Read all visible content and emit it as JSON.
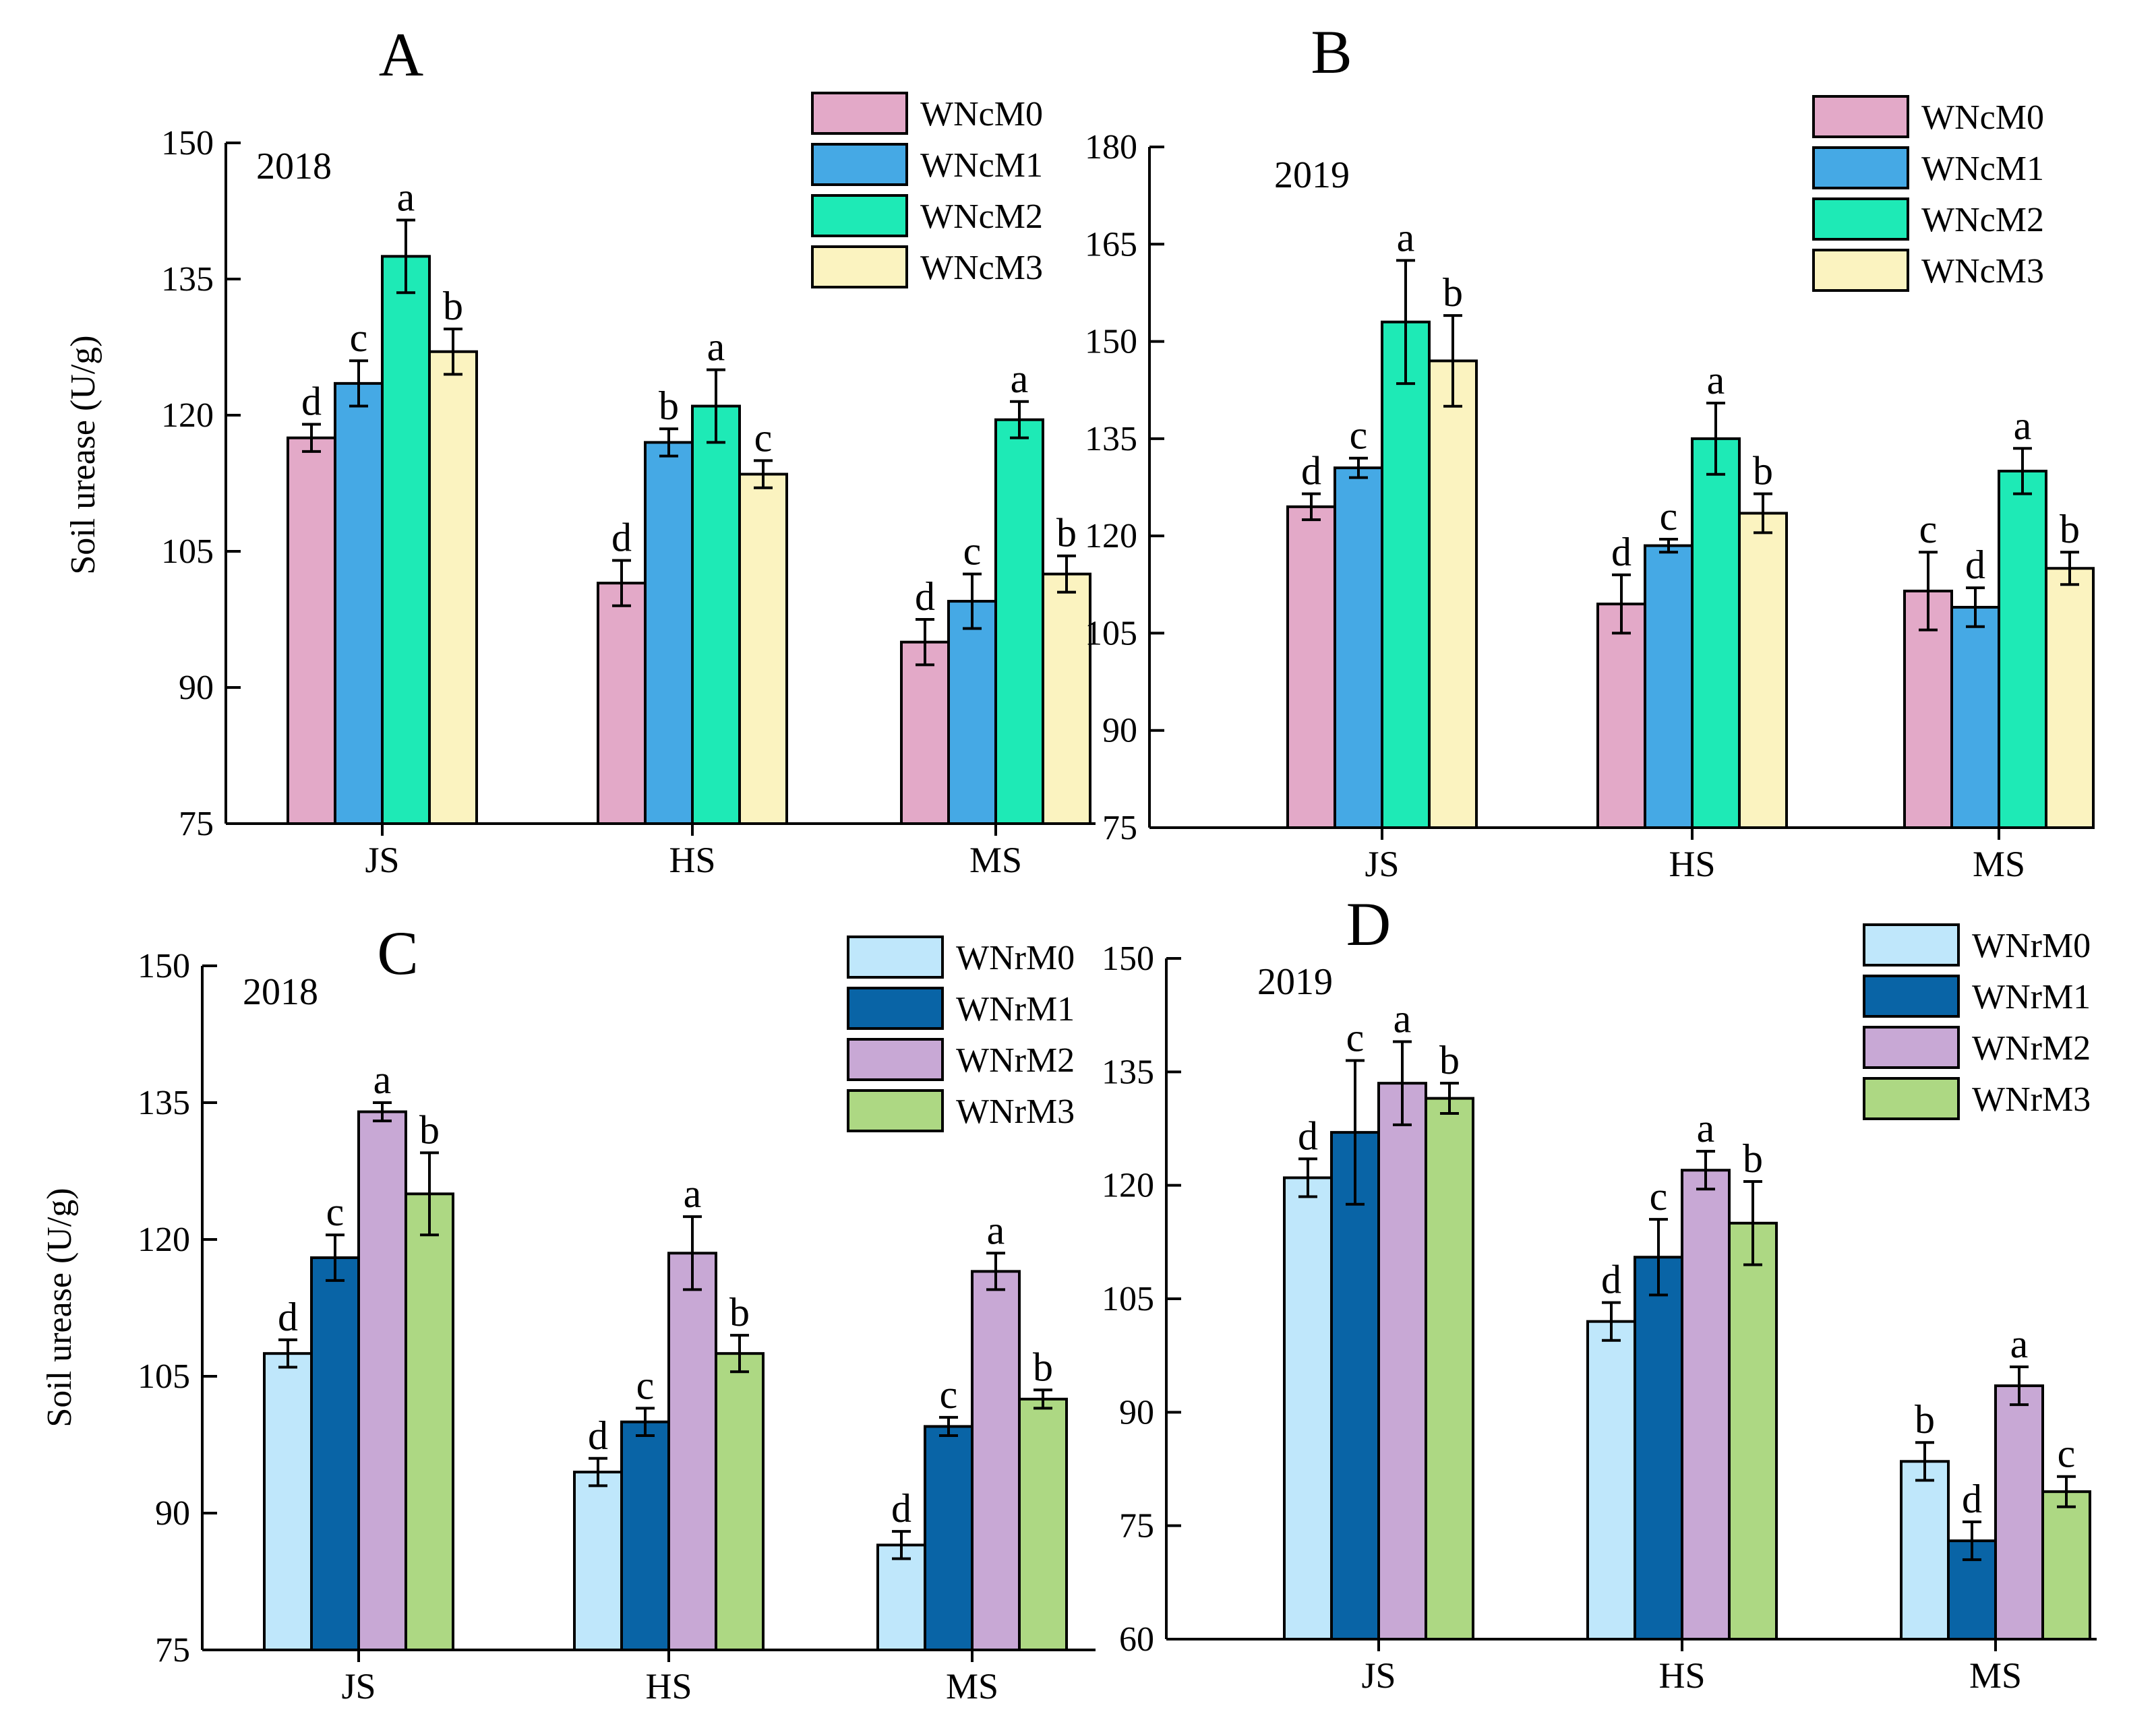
{
  "ylabel": "Soil urease (U/g)",
  "chart_data": [
    {
      "type": "bar",
      "panel": "A",
      "year": "2018",
      "title": "A",
      "ylabel": "Soil urease (U/g)",
      "xlabel": "",
      "categories": [
        "JS",
        "HS",
        "MS"
      ],
      "ylim": [
        75,
        150
      ],
      "yticks": [
        "75",
        "90",
        "105",
        "120",
        "135",
        "150"
      ],
      "series": [
        {
          "name": "WNcM0",
          "color": "#E3A9C8",
          "values": [
            117.5,
            101.5,
            95
          ],
          "errors": [
            1.5,
            2.5,
            2.5
          ],
          "letters": [
            "d",
            "d",
            "d"
          ]
        },
        {
          "name": "WNcM1",
          "color": "#45A9E5",
          "values": [
            123.5,
            117,
            99.5
          ],
          "errors": [
            2.5,
            1.5,
            3
          ],
          "letters": [
            "c",
            "b",
            "c"
          ]
        },
        {
          "name": "WNcM2",
          "color": "#1EEAB6",
          "values": [
            137.5,
            121,
            119.5
          ],
          "errors": [
            4,
            4,
            2
          ],
          "letters": [
            "a",
            "a",
            "a"
          ]
        },
        {
          "name": "WNcM3",
          "color": "#FBF3C0",
          "values": [
            127,
            113.5,
            102.5
          ],
          "errors": [
            2.5,
            1.5,
            2
          ],
          "letters": [
            "b",
            "c",
            "b"
          ]
        }
      ]
    },
    {
      "type": "bar",
      "panel": "B",
      "year": "2019",
      "title": "B",
      "ylabel": "",
      "xlabel": "",
      "categories": [
        "JS",
        "HS",
        "MS"
      ],
      "ylim": [
        75,
        180
      ],
      "yticks": [
        "75",
        "90",
        "105",
        "120",
        "135",
        "150",
        "165",
        "180"
      ],
      "series": [
        {
          "name": "WNcM0",
          "color": "#E3A9C8",
          "values": [
            124.5,
            109.5,
            111.5
          ],
          "errors": [
            2,
            4.5,
            6
          ],
          "letters": [
            "d",
            "d",
            "c"
          ]
        },
        {
          "name": "WNcM1",
          "color": "#45A9E5",
          "values": [
            130.5,
            118.5,
            109
          ],
          "errors": [
            1.5,
            1,
            3
          ],
          "letters": [
            "c",
            "c",
            "d"
          ]
        },
        {
          "name": "WNcM2",
          "color": "#1EEAB6",
          "values": [
            153,
            135,
            130
          ],
          "errors": [
            9.5,
            5.5,
            3.5
          ],
          "letters": [
            "a",
            "a",
            "a"
          ]
        },
        {
          "name": "WNcM3",
          "color": "#FBF3C0",
          "values": [
            147,
            123.5,
            115
          ],
          "errors": [
            7,
            3,
            2.5
          ],
          "letters": [
            "b",
            "b",
            "b"
          ]
        }
      ]
    },
    {
      "type": "bar",
      "panel": "C",
      "year": "2018",
      "title": "C",
      "ylabel": "Soil urease (U/g)",
      "xlabel": "",
      "categories": [
        "JS",
        "HS",
        "MS"
      ],
      "ylim": [
        75,
        150
      ],
      "yticks": [
        "75",
        "90",
        "105",
        "120",
        "135",
        "150"
      ],
      "series": [
        {
          "name": "WNrM0",
          "color": "#BFE7FB",
          "values": [
            107.5,
            94.5,
            86.5
          ],
          "errors": [
            1.5,
            1.5,
            1.5
          ],
          "letters": [
            "d",
            "d",
            "d"
          ]
        },
        {
          "name": "WNrM1",
          "color": "#0964A6",
          "values": [
            118,
            100,
            99.5
          ],
          "errors": [
            2.5,
            1.5,
            1
          ],
          "letters": [
            "c",
            "c",
            "c"
          ]
        },
        {
          "name": "WNrM2",
          "color": "#C8A8D5",
          "values": [
            134,
            118.5,
            116.5
          ],
          "errors": [
            1,
            4,
            2
          ],
          "letters": [
            "a",
            "a",
            "a"
          ]
        },
        {
          "name": "WNrM3",
          "color": "#ADD883",
          "values": [
            125,
            107.5,
            102.5
          ],
          "errors": [
            4.5,
            2,
            1
          ],
          "letters": [
            "b",
            "b",
            "b"
          ]
        }
      ]
    },
    {
      "type": "bar",
      "panel": "D",
      "year": "2019",
      "title": "D",
      "ylabel": "",
      "xlabel": "",
      "categories": [
        "JS",
        "HS",
        "MS"
      ],
      "ylim": [
        60,
        150
      ],
      "yticks": [
        "60",
        "75",
        "90",
        "105",
        "120",
        "135",
        "150"
      ],
      "series": [
        {
          "name": "WNrM0",
          "color": "#BFE7FB",
          "values": [
            121,
            102,
            83.5
          ],
          "errors": [
            2.5,
            2.5,
            2.5
          ],
          "letters": [
            "d",
            "d",
            "b"
          ]
        },
        {
          "name": "WNrM1",
          "color": "#0964A6",
          "values": [
            127,
            110.5,
            73
          ],
          "errors": [
            9.5,
            5,
            2.5
          ],
          "letters": [
            "c",
            "c",
            "d"
          ]
        },
        {
          "name": "WNrM2",
          "color": "#C8A8D5",
          "values": [
            133.5,
            122,
            93.5
          ],
          "errors": [
            5.5,
            2.5,
            2.5
          ],
          "letters": [
            "a",
            "a",
            "a"
          ]
        },
        {
          "name": "WNrM3",
          "color": "#ADD883",
          "values": [
            131.5,
            115,
            79.5
          ],
          "errors": [
            2,
            5.5,
            2
          ],
          "letters": [
            "b",
            "b",
            "c"
          ]
        }
      ]
    }
  ]
}
